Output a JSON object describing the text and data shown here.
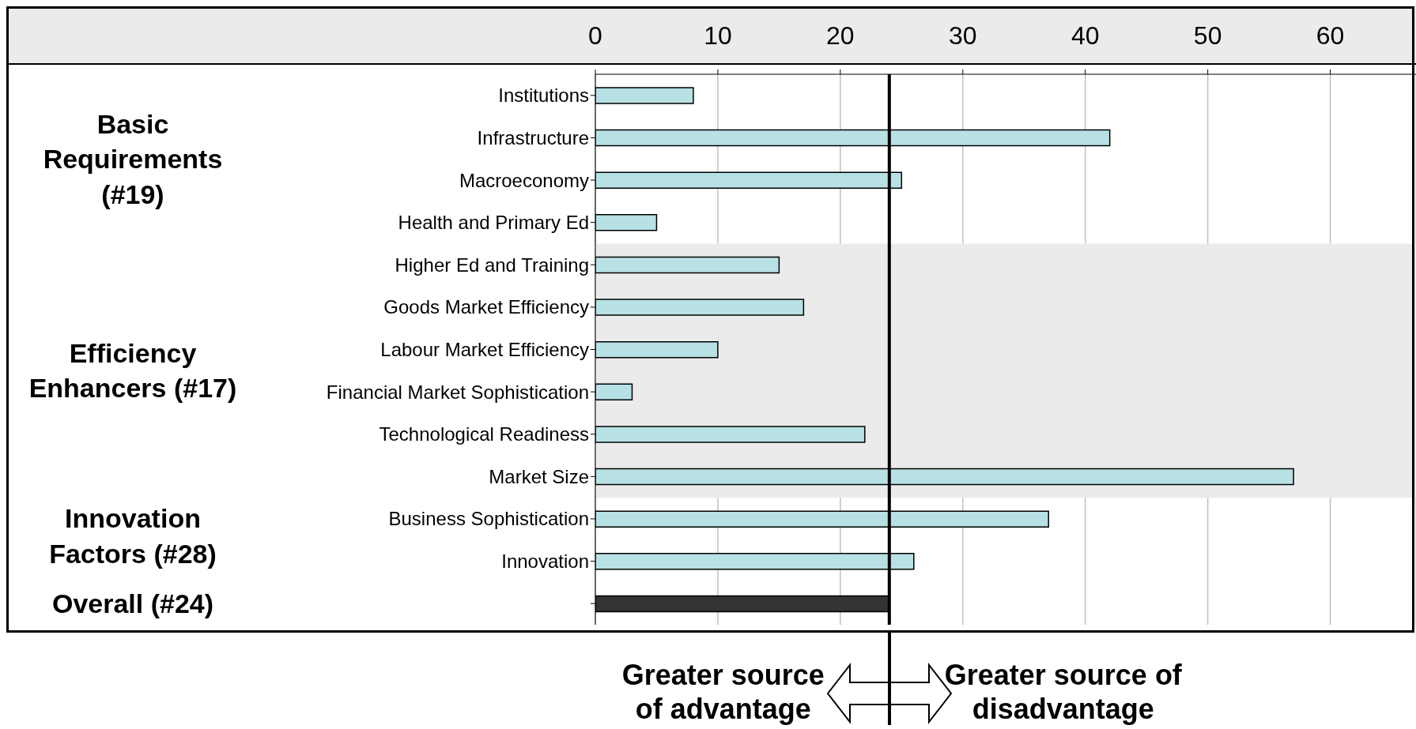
{
  "chart_data": {
    "type": "bar",
    "orientation": "horizontal",
    "categories": [
      "Institutions",
      "Infrastructure",
      "Macroeconomy",
      "Health and Primary Ed",
      "Higher Ed and Training",
      "Goods Market Efficiency",
      "Labour Market Efficiency",
      "Financial Market Sophistication",
      "Technological Readiness",
      "Market Size",
      "Business Sophistication",
      "Innovation",
      null
    ],
    "values": [
      8,
      42,
      25,
      5,
      15,
      17,
      10,
      3,
      22,
      57,
      37,
      26,
      24
    ],
    "colors": [
      "#b7e1e4",
      "#b7e1e4",
      "#b7e1e4",
      "#b7e1e4",
      "#b7e1e4",
      "#b7e1e4",
      "#b7e1e4",
      "#b7e1e4",
      "#b7e1e4",
      "#b7e1e4",
      "#b7e1e4",
      "#b7e1e4",
      "#333333"
    ],
    "xlim": [
      0,
      67
    ],
    "xticks": [
      0,
      10,
      20,
      30,
      40,
      50,
      60
    ],
    "grid": "x",
    "ref_lines": [
      {
        "axis": "x",
        "value": 24,
        "color": "#000000"
      }
    ],
    "bands": [
      {
        "axis": "y",
        "from": "Higher Ed and Training",
        "to": "Market Size",
        "color": "#ebebeb"
      }
    ],
    "annotations": [
      "Basic Requirements (#19)",
      "Efficiency Enhancers (#17)",
      "Innovation Factors (#28)",
      "Overall (#24)",
      "Greater source of advantage",
      "Greater source of disadvantage"
    ]
  }
}
